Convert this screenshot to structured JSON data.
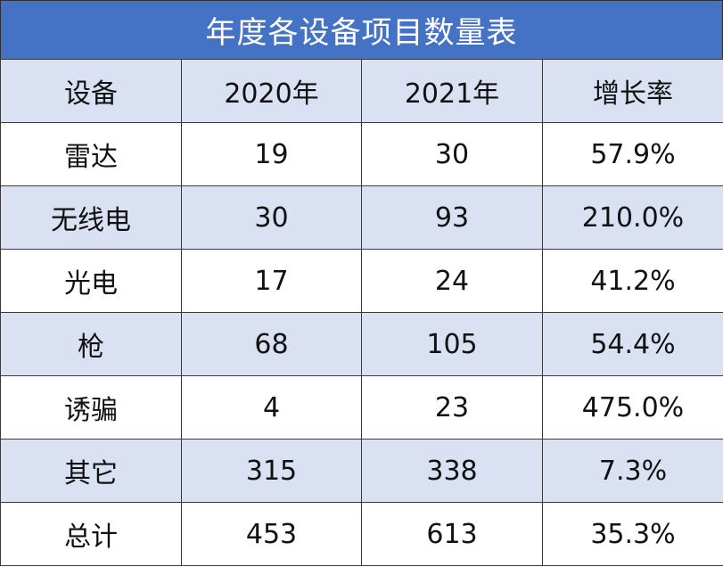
{
  "header": {
    "title": "年度各设备项目数量表"
  },
  "table": {
    "columns": [
      "设备",
      "2020年",
      "2021年",
      "增长率"
    ],
    "rows": [
      [
        "雷达",
        "19",
        "30",
        "57.9%"
      ],
      [
        "无线电",
        "30",
        "93",
        "210.0%"
      ],
      [
        "光电",
        "17",
        "24",
        "41.2%"
      ],
      [
        "枪",
        "68",
        "105",
        "54.4%"
      ],
      [
        "诱骗",
        "4",
        "23",
        "475.0%"
      ],
      [
        "其它",
        "315",
        "338",
        "7.3%"
      ],
      [
        "总计",
        "453",
        "613",
        "35.3%"
      ]
    ]
  }
}
